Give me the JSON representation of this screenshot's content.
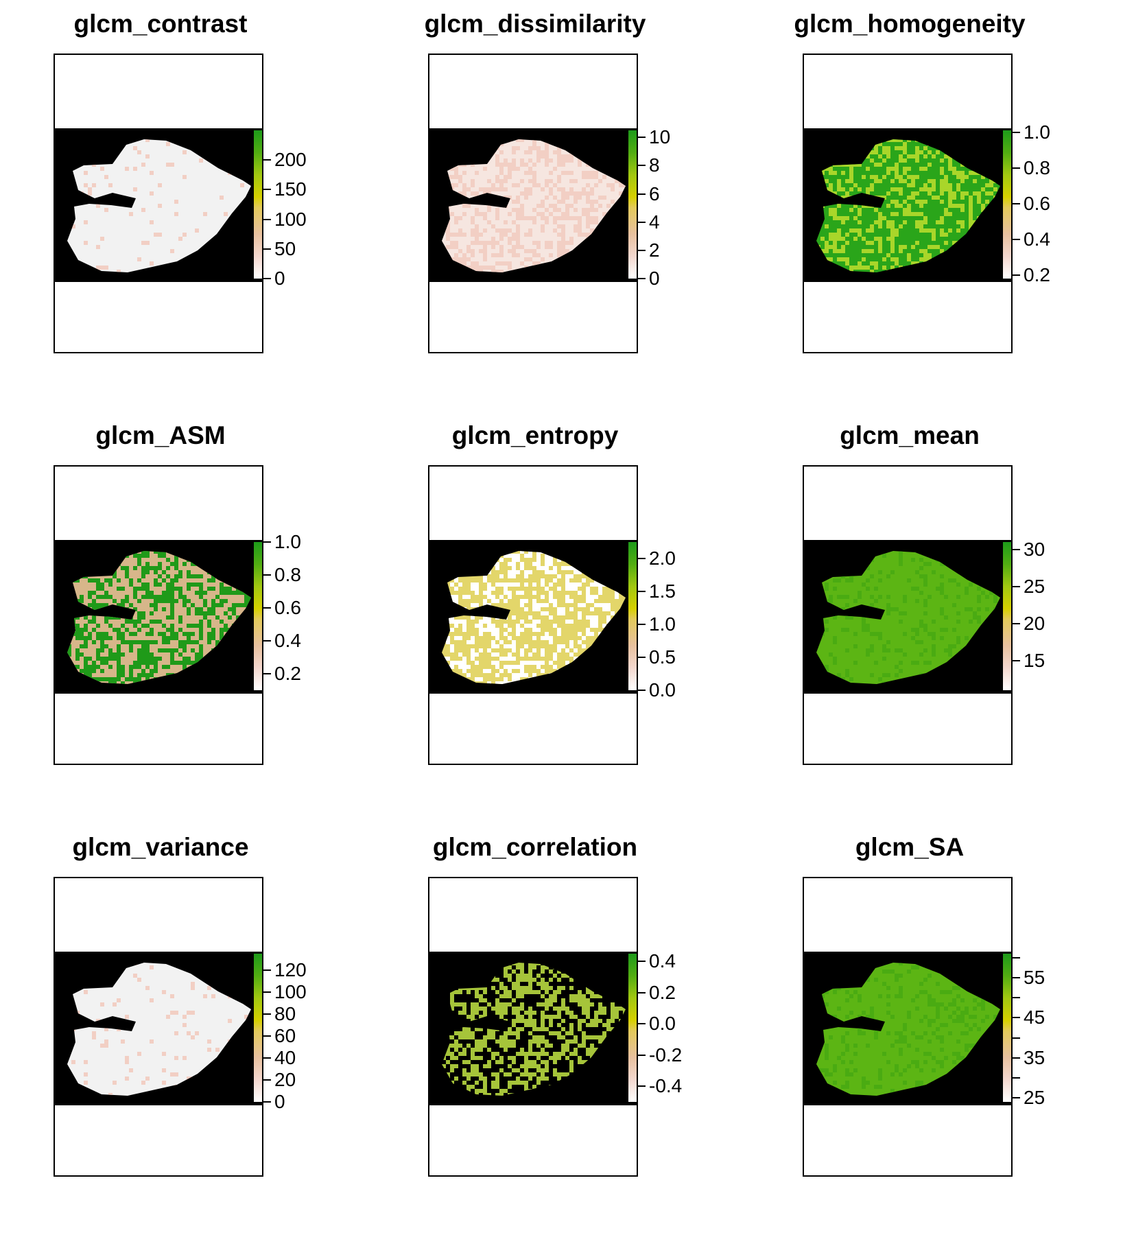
{
  "chart_data": [
    {
      "type": "heatmap",
      "title": "glcm_contrast",
      "fill": "#f2f2f2",
      "speckle": "#f2cfc4",
      "speckle_amount": 0.05,
      "colorbar": {
        "min": 0,
        "max": 250,
        "ticks": [
          0,
          50,
          100,
          150,
          200
        ],
        "labels": [
          "0",
          "50",
          "100",
          "150",
          "200"
        ]
      }
    },
    {
      "type": "heatmap",
      "title": "glcm_dissimilarity",
      "fill": "#f6e6e0",
      "speckle": "#f2cfc4",
      "speckle_amount": 0.45,
      "colorbar": {
        "min": 0,
        "max": 10.5,
        "ticks": [
          0,
          2,
          4,
          6,
          8,
          10
        ],
        "labels": [
          "0",
          "2",
          "4",
          "6",
          "8",
          "10"
        ]
      }
    },
    {
      "type": "heatmap",
      "title": "glcm_homogeneity",
      "fill": "#2aa51a",
      "speckle": "#a9d62a",
      "speckle_amount": 0.4,
      "colorbar": {
        "min": 0.18,
        "max": 1.01,
        "ticks": [
          0.2,
          0.4,
          0.6,
          0.8,
          1.0
        ],
        "labels": [
          "0.2",
          "0.4",
          "0.6",
          "0.8",
          "1.0"
        ]
      }
    },
    {
      "type": "heatmap",
      "title": "glcm_ASM",
      "fill": "#d7b68a",
      "speckle": "#1f9a19",
      "speckle_amount": 0.45,
      "colorbar": {
        "min": 0.1,
        "max": 1.0,
        "ticks": [
          0.2,
          0.4,
          0.6,
          0.8,
          1.0
        ],
        "labels": [
          "0.2",
          "0.4",
          "0.6",
          "0.8",
          "1.0"
        ]
      }
    },
    {
      "type": "heatmap",
      "title": "glcm_entropy",
      "fill": "#e3d66a",
      "speckle": "#ffffff",
      "speckle_amount": 0.35,
      "colorbar": {
        "min": 0,
        "max": 2.25,
        "ticks": [
          0.0,
          0.5,
          1.0,
          1.5,
          2.0
        ],
        "labels": [
          "0.0",
          "0.5",
          "1.0",
          "1.5",
          "2.0"
        ]
      }
    },
    {
      "type": "heatmap",
      "title": "glcm_mean",
      "fill": "#5cb514",
      "speckle": "#4aab12",
      "speckle_amount": 0.2,
      "colorbar": {
        "min": 11,
        "max": 31,
        "ticks": [
          15,
          20,
          25,
          30
        ],
        "labels": [
          "15",
          "20",
          "25",
          "30"
        ]
      }
    },
    {
      "type": "heatmap",
      "title": "glcm_variance",
      "fill": "#f2f2f2",
      "speckle": "#f2cfc4",
      "speckle_amount": 0.05,
      "colorbar": {
        "min": 0,
        "max": 135,
        "ticks": [
          0,
          20,
          40,
          60,
          80,
          100,
          120
        ],
        "labels": [
          "0",
          "20",
          "40",
          "60",
          "80",
          "100",
          "120"
        ]
      }
    },
    {
      "type": "heatmap",
      "title": "glcm_correlation",
      "fill": "#000000",
      "speckle": "#a6c43a",
      "speckle_amount": 0.5,
      "colorbar": {
        "min": -0.5,
        "max": 0.45,
        "ticks": [
          -0.4,
          -0.2,
          0.0,
          0.2,
          0.4
        ],
        "labels": [
          "-0.4",
          "-0.2",
          "0.0",
          "0.2",
          "0.4"
        ]
      }
    },
    {
      "type": "heatmap",
      "title": "glcm_SA",
      "fill": "#5cb514",
      "speckle": "#4aab12",
      "speckle_amount": 0.2,
      "colorbar": {
        "min": 24,
        "max": 61,
        "ticks": [
          25,
          30,
          35,
          40,
          45,
          50,
          55,
          60
        ],
        "labels": [
          "25",
          "",
          "35",
          "",
          "45",
          "",
          "55",
          ""
        ]
      }
    }
  ]
}
